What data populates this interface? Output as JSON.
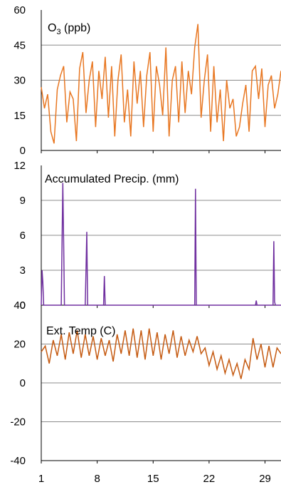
{
  "chart_data": [
    {
      "type": "line",
      "id": "o3",
      "title_main": "O",
      "title_sub": "3",
      "title_suffix": " (ppb)",
      "ylim": [
        0,
        60
      ],
      "yticks": [
        0,
        15,
        30,
        45,
        60
      ],
      "ytick_labels": [
        "0",
        "15",
        "30",
        "45",
        "60"
      ],
      "grid": true,
      "color": "#E87722",
      "series": [
        {
          "x": [
            1,
            1.4,
            1.8,
            2.2,
            2.6,
            3.0,
            3.4,
            3.8,
            4.2,
            4.6,
            5.0,
            5.4,
            5.8,
            6.2,
            6.6,
            7.0,
            7.4,
            7.8,
            8.2,
            8.6,
            9.0,
            9.4,
            9.8,
            10.2,
            10.6,
            11.0,
            11.4,
            11.8,
            12.2,
            12.6,
            13.0,
            13.4,
            13.8,
            14.2,
            14.6,
            15.0,
            15.4,
            15.8,
            16.2,
            16.6,
            17.0,
            17.4,
            17.8,
            18.2,
            18.6,
            19.0,
            19.4,
            19.8,
            20.2,
            20.6,
            21.0,
            21.4,
            21.8,
            22.2,
            22.6,
            23.0,
            23.4,
            23.8,
            24.2,
            24.6,
            25.0,
            25.4,
            25.8,
            26.2,
            26.6,
            27.0,
            27.4,
            27.8,
            28.2,
            28.6,
            29.0,
            29.4,
            29.8,
            30.2,
            30.6,
            31.0
          ],
          "y": [
            27,
            18,
            24,
            8,
            3,
            26,
            32,
            36,
            12,
            25,
            22,
            4,
            35,
            42,
            16,
            30,
            38,
            10,
            34,
            22,
            40,
            14,
            36,
            6,
            30,
            41,
            12,
            26,
            6,
            38,
            20,
            34,
            10,
            32,
            42,
            8,
            36,
            28,
            15,
            44,
            6,
            30,
            36,
            12,
            38,
            16,
            34,
            24,
            44,
            54,
            14,
            30,
            41,
            8,
            36,
            12,
            26,
            4,
            30,
            18,
            22,
            6,
            10,
            20,
            28,
            8,
            34,
            36,
            22,
            35,
            10,
            28,
            32,
            18,
            24,
            34
          ]
        }
      ]
    },
    {
      "type": "line",
      "id": "precip",
      "title": "Accumulated Precip. (mm)",
      "ylim": [
        0,
        12
      ],
      "yticks": [
        0,
        3,
        6,
        9,
        12
      ],
      "ytick_labels": [
        "0",
        "3",
        "6",
        "9",
        "12"
      ],
      "grid": true,
      "color": "#7030A0",
      "series": [
        {
          "x": [
            1,
            1.1,
            1.2,
            1.3,
            1.4,
            1.5,
            1.6,
            3.5,
            3.6,
            3.7,
            3.8,
            3.9,
            4.0,
            4.1,
            4.2,
            6.5,
            6.6,
            6.7,
            6.8,
            6.9,
            7.0,
            7.1,
            8.8,
            8.9,
            9.0,
            9.1,
            9.2,
            20.2,
            20.3,
            20.4,
            20.5,
            20.6,
            27.8,
            27.9,
            28.0,
            28.1,
            30.0,
            30.1,
            30.2,
            30.3,
            30.4,
            31.0
          ],
          "y": [
            0,
            3.0,
            2.0,
            0,
            0,
            0,
            0,
            0,
            5.3,
            10.5,
            5.3,
            0,
            0,
            0,
            0,
            0,
            3.0,
            6.3,
            0,
            0,
            0,
            0,
            0,
            2.5,
            0,
            0,
            0,
            0,
            10.0,
            0,
            0,
            0,
            0,
            0.4,
            0,
            0,
            0,
            5.5,
            0.3,
            0,
            0,
            0
          ]
        }
      ]
    },
    {
      "type": "line",
      "id": "temp",
      "title": "Ext. Temp (C)",
      "ylim": [
        -40,
        40
      ],
      "yticks": [
        -40,
        -20,
        0,
        20,
        40
      ],
      "ytick_labels": [
        "-40",
        "-20",
        "0",
        "20",
        "40"
      ],
      "grid": true,
      "color": "#C55A11",
      "xticks": [
        1,
        8,
        15,
        22,
        29
      ],
      "xtick_labels": [
        "1",
        "8",
        "15",
        "22",
        "29"
      ],
      "xlim": [
        1,
        31
      ],
      "series": [
        {
          "x": [
            1,
            1.5,
            2,
            2.5,
            3,
            3.5,
            4,
            4.5,
            5,
            5.5,
            6,
            6.5,
            7,
            7.5,
            8,
            8.5,
            9,
            9.5,
            10,
            10.5,
            11,
            11.5,
            12,
            12.5,
            13,
            13.5,
            14,
            14.5,
            15,
            15.5,
            16,
            16.5,
            17,
            17.5,
            18,
            18.5,
            19,
            19.5,
            20,
            20.5,
            21,
            21.5,
            22,
            22.5,
            23,
            23.5,
            24,
            24.5,
            25,
            25.5,
            26,
            26.5,
            27,
            27.5,
            28,
            28.5,
            29,
            29.5,
            30,
            30.5,
            31
          ],
          "y": [
            16,
            19,
            10,
            22,
            14,
            25,
            12,
            26,
            15,
            27,
            13,
            25,
            14,
            24,
            12,
            23,
            14,
            22,
            11,
            25,
            15,
            27,
            14,
            28,
            13,
            27,
            12,
            28,
            14,
            26,
            12,
            25,
            15,
            27,
            13,
            24,
            14,
            22,
            16,
            24,
            15,
            18,
            9,
            16,
            7,
            14,
            5,
            12,
            4,
            10,
            2,
            12,
            7,
            23,
            12,
            20,
            8,
            19,
            8,
            18,
            15
          ]
        }
      ]
    }
  ]
}
